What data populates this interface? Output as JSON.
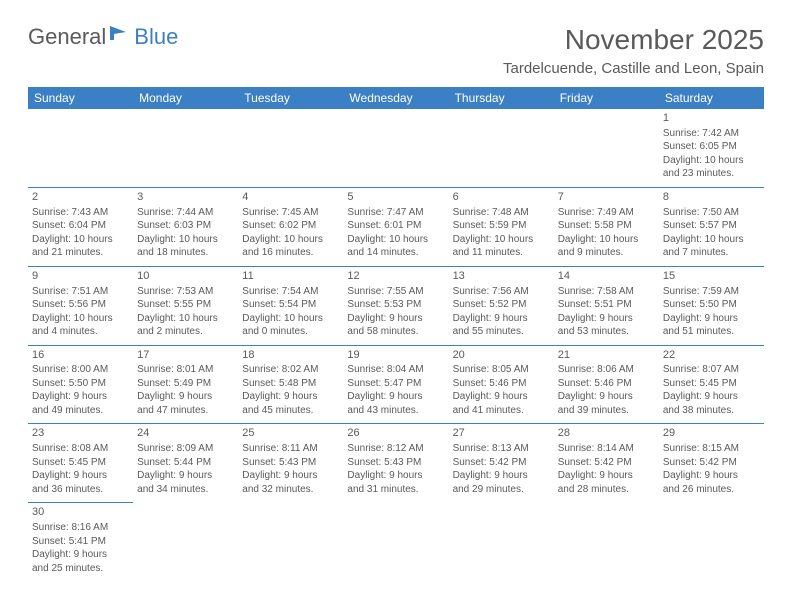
{
  "logo": {
    "part1": "General",
    "part2": "Blue"
  },
  "title": "November 2025",
  "subtitle": "Tardelcuende, Castille and Leon, Spain",
  "colors": {
    "accent": "#3b7fc4",
    "text": "#5a5a5a",
    "background": "#ffffff"
  },
  "weekdays": [
    "Sunday",
    "Monday",
    "Tuesday",
    "Wednesday",
    "Thursday",
    "Friday",
    "Saturday"
  ],
  "weeks": [
    [
      null,
      null,
      null,
      null,
      null,
      null,
      {
        "n": "1",
        "sunrise": "Sunrise: 7:42 AM",
        "sunset": "Sunset: 6:05 PM",
        "daylight1": "Daylight: 10 hours",
        "daylight2": "and 23 minutes."
      }
    ],
    [
      {
        "n": "2",
        "sunrise": "Sunrise: 7:43 AM",
        "sunset": "Sunset: 6:04 PM",
        "daylight1": "Daylight: 10 hours",
        "daylight2": "and 21 minutes."
      },
      {
        "n": "3",
        "sunrise": "Sunrise: 7:44 AM",
        "sunset": "Sunset: 6:03 PM",
        "daylight1": "Daylight: 10 hours",
        "daylight2": "and 18 minutes."
      },
      {
        "n": "4",
        "sunrise": "Sunrise: 7:45 AM",
        "sunset": "Sunset: 6:02 PM",
        "daylight1": "Daylight: 10 hours",
        "daylight2": "and 16 minutes."
      },
      {
        "n": "5",
        "sunrise": "Sunrise: 7:47 AM",
        "sunset": "Sunset: 6:01 PM",
        "daylight1": "Daylight: 10 hours",
        "daylight2": "and 14 minutes."
      },
      {
        "n": "6",
        "sunrise": "Sunrise: 7:48 AM",
        "sunset": "Sunset: 5:59 PM",
        "daylight1": "Daylight: 10 hours",
        "daylight2": "and 11 minutes."
      },
      {
        "n": "7",
        "sunrise": "Sunrise: 7:49 AM",
        "sunset": "Sunset: 5:58 PM",
        "daylight1": "Daylight: 10 hours",
        "daylight2": "and 9 minutes."
      },
      {
        "n": "8",
        "sunrise": "Sunrise: 7:50 AM",
        "sunset": "Sunset: 5:57 PM",
        "daylight1": "Daylight: 10 hours",
        "daylight2": "and 7 minutes."
      }
    ],
    [
      {
        "n": "9",
        "sunrise": "Sunrise: 7:51 AM",
        "sunset": "Sunset: 5:56 PM",
        "daylight1": "Daylight: 10 hours",
        "daylight2": "and 4 minutes."
      },
      {
        "n": "10",
        "sunrise": "Sunrise: 7:53 AM",
        "sunset": "Sunset: 5:55 PM",
        "daylight1": "Daylight: 10 hours",
        "daylight2": "and 2 minutes."
      },
      {
        "n": "11",
        "sunrise": "Sunrise: 7:54 AM",
        "sunset": "Sunset: 5:54 PM",
        "daylight1": "Daylight: 10 hours",
        "daylight2": "and 0 minutes."
      },
      {
        "n": "12",
        "sunrise": "Sunrise: 7:55 AM",
        "sunset": "Sunset: 5:53 PM",
        "daylight1": "Daylight: 9 hours",
        "daylight2": "and 58 minutes."
      },
      {
        "n": "13",
        "sunrise": "Sunrise: 7:56 AM",
        "sunset": "Sunset: 5:52 PM",
        "daylight1": "Daylight: 9 hours",
        "daylight2": "and 55 minutes."
      },
      {
        "n": "14",
        "sunrise": "Sunrise: 7:58 AM",
        "sunset": "Sunset: 5:51 PM",
        "daylight1": "Daylight: 9 hours",
        "daylight2": "and 53 minutes."
      },
      {
        "n": "15",
        "sunrise": "Sunrise: 7:59 AM",
        "sunset": "Sunset: 5:50 PM",
        "daylight1": "Daylight: 9 hours",
        "daylight2": "and 51 minutes."
      }
    ],
    [
      {
        "n": "16",
        "sunrise": "Sunrise: 8:00 AM",
        "sunset": "Sunset: 5:50 PM",
        "daylight1": "Daylight: 9 hours",
        "daylight2": "and 49 minutes."
      },
      {
        "n": "17",
        "sunrise": "Sunrise: 8:01 AM",
        "sunset": "Sunset: 5:49 PM",
        "daylight1": "Daylight: 9 hours",
        "daylight2": "and 47 minutes."
      },
      {
        "n": "18",
        "sunrise": "Sunrise: 8:02 AM",
        "sunset": "Sunset: 5:48 PM",
        "daylight1": "Daylight: 9 hours",
        "daylight2": "and 45 minutes."
      },
      {
        "n": "19",
        "sunrise": "Sunrise: 8:04 AM",
        "sunset": "Sunset: 5:47 PM",
        "daylight1": "Daylight: 9 hours",
        "daylight2": "and 43 minutes."
      },
      {
        "n": "20",
        "sunrise": "Sunrise: 8:05 AM",
        "sunset": "Sunset: 5:46 PM",
        "daylight1": "Daylight: 9 hours",
        "daylight2": "and 41 minutes."
      },
      {
        "n": "21",
        "sunrise": "Sunrise: 8:06 AM",
        "sunset": "Sunset: 5:46 PM",
        "daylight1": "Daylight: 9 hours",
        "daylight2": "and 39 minutes."
      },
      {
        "n": "22",
        "sunrise": "Sunrise: 8:07 AM",
        "sunset": "Sunset: 5:45 PM",
        "daylight1": "Daylight: 9 hours",
        "daylight2": "and 38 minutes."
      }
    ],
    [
      {
        "n": "23",
        "sunrise": "Sunrise: 8:08 AM",
        "sunset": "Sunset: 5:45 PM",
        "daylight1": "Daylight: 9 hours",
        "daylight2": "and 36 minutes."
      },
      {
        "n": "24",
        "sunrise": "Sunrise: 8:09 AM",
        "sunset": "Sunset: 5:44 PM",
        "daylight1": "Daylight: 9 hours",
        "daylight2": "and 34 minutes."
      },
      {
        "n": "25",
        "sunrise": "Sunrise: 8:11 AM",
        "sunset": "Sunset: 5:43 PM",
        "daylight1": "Daylight: 9 hours",
        "daylight2": "and 32 minutes."
      },
      {
        "n": "26",
        "sunrise": "Sunrise: 8:12 AM",
        "sunset": "Sunset: 5:43 PM",
        "daylight1": "Daylight: 9 hours",
        "daylight2": "and 31 minutes."
      },
      {
        "n": "27",
        "sunrise": "Sunrise: 8:13 AM",
        "sunset": "Sunset: 5:42 PM",
        "daylight1": "Daylight: 9 hours",
        "daylight2": "and 29 minutes."
      },
      {
        "n": "28",
        "sunrise": "Sunrise: 8:14 AM",
        "sunset": "Sunset: 5:42 PM",
        "daylight1": "Daylight: 9 hours",
        "daylight2": "and 28 minutes."
      },
      {
        "n": "29",
        "sunrise": "Sunrise: 8:15 AM",
        "sunset": "Sunset: 5:42 PM",
        "daylight1": "Daylight: 9 hours",
        "daylight2": "and 26 minutes."
      }
    ],
    [
      {
        "n": "30",
        "sunrise": "Sunrise: 8:16 AM",
        "sunset": "Sunset: 5:41 PM",
        "daylight1": "Daylight: 9 hours",
        "daylight2": "and 25 minutes."
      },
      null,
      null,
      null,
      null,
      null,
      null
    ]
  ]
}
